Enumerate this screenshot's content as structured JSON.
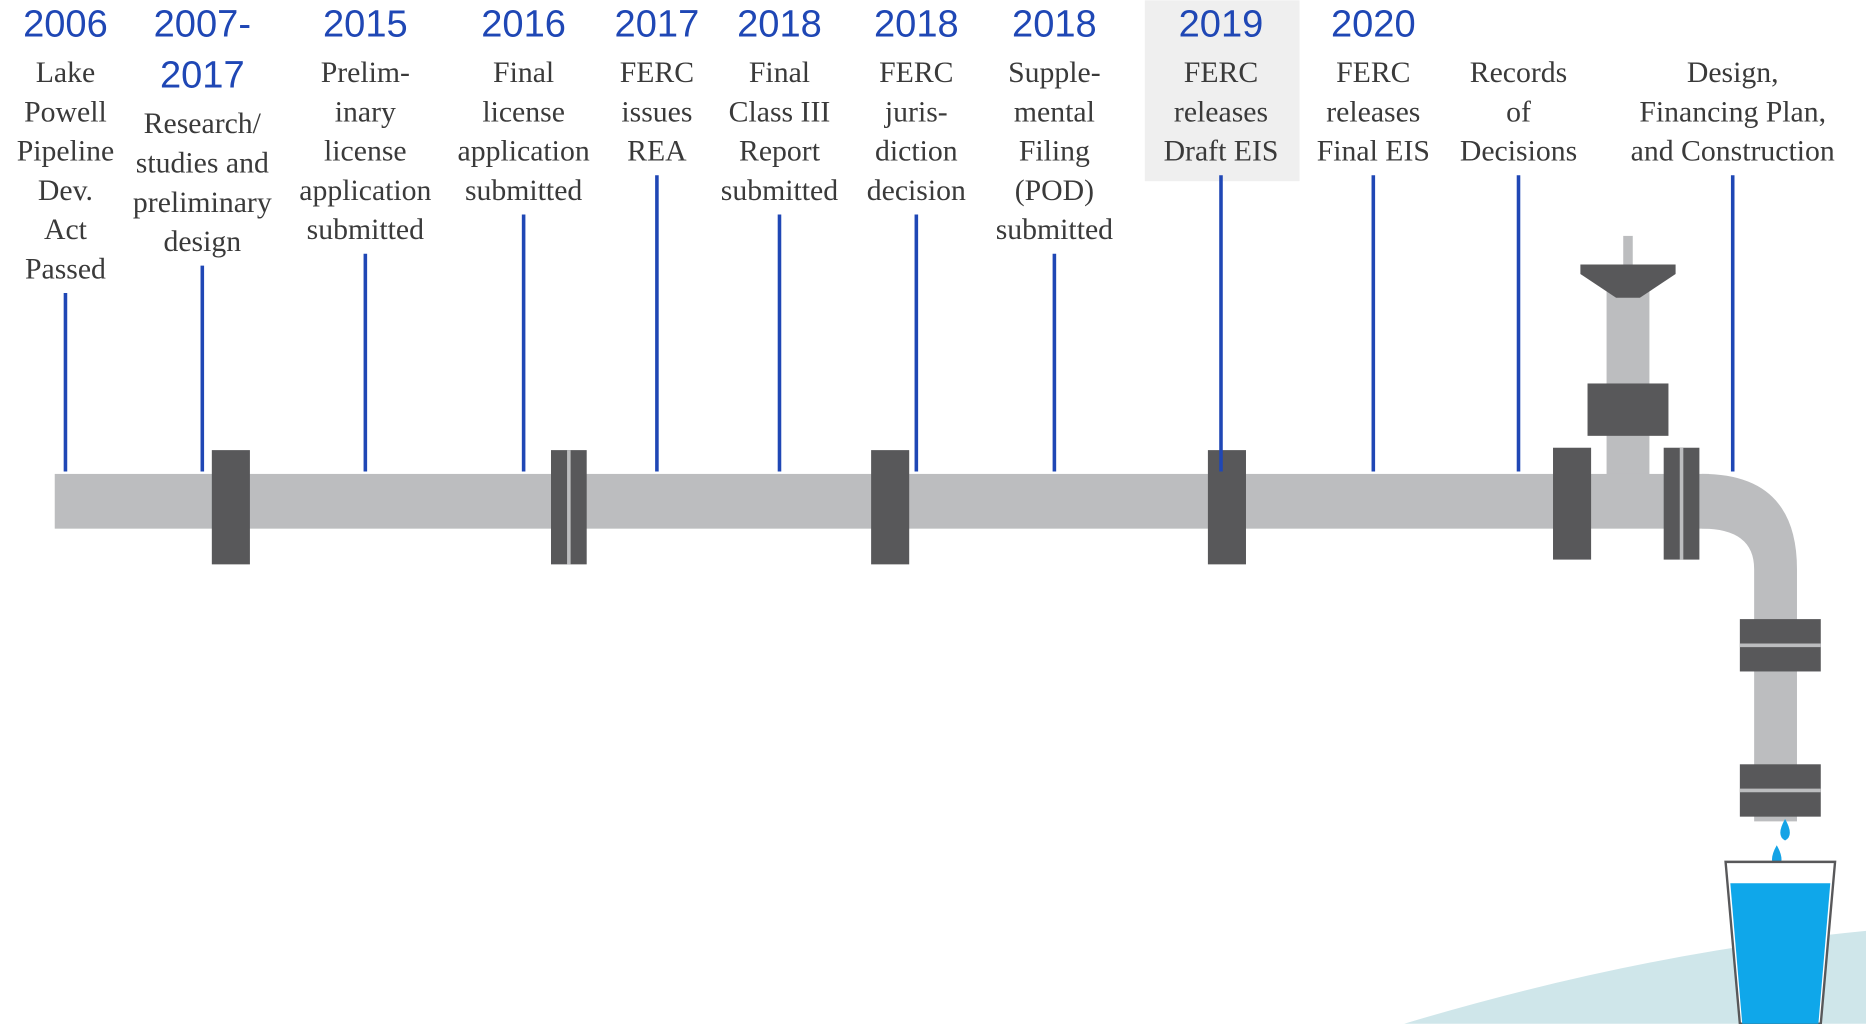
{
  "milestones": [
    {
      "year": [
        "2006"
      ],
      "lines": [
        "Lake",
        "Powell",
        "Pipeline",
        "Dev.",
        "Act",
        "Passed"
      ]
    },
    {
      "year": [
        "2007-",
        "2017"
      ],
      "lines": [
        "Research/",
        "studies and",
        "preliminary",
        "design"
      ]
    },
    {
      "year": [
        "2015"
      ],
      "lines": [
        "Prelim-",
        "inary",
        "license",
        "application",
        "submitted"
      ]
    },
    {
      "year": [
        "2016"
      ],
      "lines": [
        "Final",
        "license",
        "application",
        "submitted"
      ]
    },
    {
      "year": [
        "2017"
      ],
      "lines": [
        "FERC",
        "issues",
        "REA"
      ]
    },
    {
      "year": [
        "2018"
      ],
      "lines": [
        "Final",
        "Class III",
        "Report",
        "submitted"
      ]
    },
    {
      "year": [
        "2018"
      ],
      "lines": [
        "FERC",
        "juris-",
        "diction",
        "decision"
      ]
    },
    {
      "year": [
        "2018"
      ],
      "lines": [
        "Supple-",
        "mental",
        "Filing",
        "(POD)",
        "submitted"
      ]
    },
    {
      "year": [
        "2019"
      ],
      "lines": [
        "FERC",
        "releases",
        "Draft EIS"
      ]
    },
    {
      "year": [
        "2020"
      ],
      "lines": [
        "FERC",
        "releases",
        "Final EIS"
      ]
    },
    {
      "year": [],
      "lines": [
        "Records",
        "of",
        "Decisions"
      ]
    },
    {
      "year": [],
      "lines": [
        "Design,",
        "Financing Plan,",
        "and Construction"
      ]
    }
  ]
}
